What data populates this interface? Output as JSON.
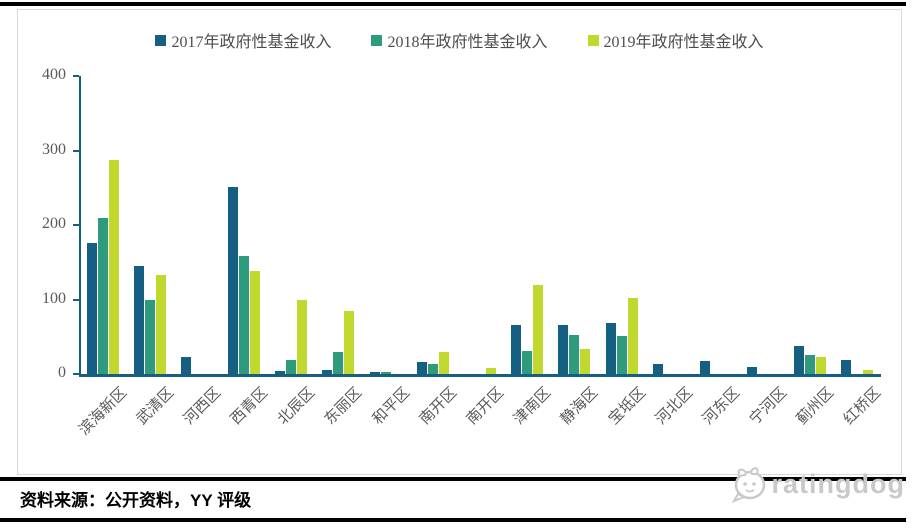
{
  "chart_data": {
    "type": "bar",
    "title": "",
    "categories": [
      "滨海新区",
      "武清区",
      "河西区",
      "西青区",
      "北辰区",
      "东丽区",
      "和平区",
      "南开区",
      "南开区",
      "津南区",
      "静海区",
      "宝坻区",
      "河北区",
      "河东区",
      "宁河区",
      "蓟州区",
      "红桥区"
    ],
    "series": [
      {
        "name": "2017年政府性基金收入",
        "color": "#156082",
        "values": [
          176,
          145,
          23,
          252,
          4,
          6,
          3,
          16,
          0,
          66,
          66,
          69,
          13,
          18,
          10,
          37,
          19
        ]
      },
      {
        "name": "2018年政府性基金收入",
        "color": "#2E9B7C",
        "values": [
          210,
          100,
          0,
          158,
          19,
          30,
          3,
          13,
          0,
          31,
          53,
          51,
          0,
          0,
          0,
          26,
          0
        ]
      },
      {
        "name": "2019年政府性基金收入",
        "color": "#C1D82F",
        "values": [
          287,
          133,
          0,
          139,
          100,
          85,
          0,
          30,
          8,
          120,
          33,
          102,
          0,
          0,
          0,
          23,
          6
        ]
      }
    ],
    "ylim": [
      0,
      400
    ],
    "yticks": [
      0,
      100,
      200,
      300,
      400
    ],
    "grid": false,
    "legend_position": "top",
    "xlabel": "",
    "ylabel": ""
  },
  "footer": {
    "source_text": "资料来源：公开资料，YY 评级",
    "brand_name": "ratingdog"
  },
  "colors": {
    "axis": "#156082",
    "tick_label": "#595959",
    "legend_text": "#4d4d4d",
    "rule": "#000000",
    "brand": "#c9c9c9"
  }
}
